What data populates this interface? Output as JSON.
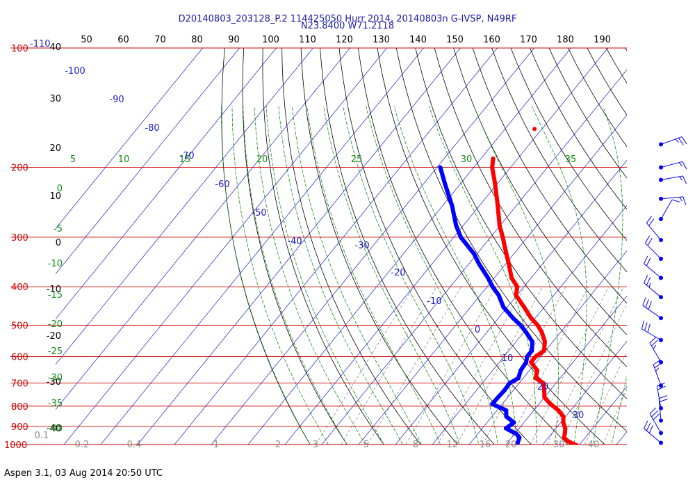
{
  "header": {
    "line1": "D20140803_203128_P.2 114425050 Hurr 2014, 20140803n G-IVSP, N49RF",
    "line2": "N23.8400 W71.2118"
  },
  "footer": "Aspen 3.1, 03 Aug 2014  20:50 UTC",
  "colors": {
    "temperature": "#ff0000",
    "dewpoint": "#0000ff",
    "isobar": "#cc0000",
    "isotherm": "#1a1acc",
    "dry_adiabat": "#000000",
    "moist_adiabat": "#138a13",
    "mixing_ratio": "#8a8a8a",
    "wind_barb": "#0000ff",
    "pressure_label": "#cc0000",
    "theta_label": "#000000",
    "mixing_label": "#8a8a8a",
    "moist_label": "#138a13"
  },
  "chart_data": {
    "type": "skew-t",
    "title": "D20140803_203128_P.2 114425050 Hurr 2014, 20140803n G-IVSP, N49RF",
    "subtitle": "N23.8400 W71.2118",
    "y_scale": "log-pressure",
    "ylim": [
      1000,
      100
    ],
    "pressure_levels": [
      100,
      200,
      300,
      400,
      500,
      600,
      700,
      800,
      900,
      1000
    ],
    "pressure_tick_labels": [
      "100",
      "200",
      "300",
      "400",
      "500",
      "600",
      "700",
      "800",
      "900",
      "1000"
    ],
    "top_temperature_label": "-110",
    "isotherm_labels": [
      "-100",
      "-90",
      "-80",
      "-70",
      "-60",
      "-50",
      "-40",
      "-30",
      "-20",
      "-10",
      "0",
      "10",
      "20",
      "30"
    ],
    "isotherm_label_values": [
      -100,
      -90,
      -80,
      -70,
      -60,
      -50,
      -40,
      -30,
      -20,
      -10,
      0,
      10,
      20,
      30
    ],
    "theta_scale_labels": [
      "50",
      "60",
      "70",
      "80",
      "90",
      "100",
      "110",
      "120",
      "130",
      "140",
      "150",
      "160",
      "170",
      "180",
      "190"
    ],
    "altitude_labels": [
      "40",
      "30",
      "20",
      "10",
      "0",
      "-10",
      "-20",
      "-30",
      "-40"
    ],
    "moist_adiabat_top_labels": [
      "5",
      "10",
      "15",
      "20",
      "25",
      "30",
      "35"
    ],
    "moist_adiabat_left_labels": [
      "0",
      "-5",
      "-10",
      "-15",
      "-20",
      "-25",
      "-30",
      "-35",
      "-40"
    ],
    "mixing_ratio_labels": [
      "0.1",
      "0.2",
      "0.4",
      "1",
      "2",
      "3",
      "5",
      "8",
      "12",
      "16",
      "20",
      "30",
      "40"
    ],
    "temperature_profile": [
      {
        "p": 190,
        "t": -56.7
      },
      {
        "p": 200,
        "t": -55.0
      },
      {
        "p": 220,
        "t": -50.6
      },
      {
        "p": 250,
        "t": -45.0
      },
      {
        "p": 280,
        "t": -40.2
      },
      {
        "p": 300,
        "t": -36.7
      },
      {
        "p": 330,
        "t": -32.1
      },
      {
        "p": 350,
        "t": -29.2
      },
      {
        "p": 380,
        "t": -25.3
      },
      {
        "p": 400,
        "t": -21.8
      },
      {
        "p": 420,
        "t": -20.3
      },
      {
        "p": 450,
        "t": -15.5
      },
      {
        "p": 480,
        "t": -11.1
      },
      {
        "p": 500,
        "t": -7.8
      },
      {
        "p": 520,
        "t": -5.2
      },
      {
        "p": 550,
        "t": -2.2
      },
      {
        "p": 580,
        "t": -0.4
      },
      {
        "p": 600,
        "t": -1.4
      },
      {
        "p": 620,
        "t": -1.4
      },
      {
        "p": 650,
        "t": 2.1
      },
      {
        "p": 680,
        "t": 3.4
      },
      {
        "p": 700,
        "t": 6.6
      },
      {
        "p": 730,
        "t": 8.4
      },
      {
        "p": 760,
        "t": 10.0
      },
      {
        "p": 790,
        "t": 13.1
      },
      {
        "p": 820,
        "t": 16.7
      },
      {
        "p": 850,
        "t": 19.4
      },
      {
        "p": 880,
        "t": 20.7
      },
      {
        "p": 910,
        "t": 22.5
      },
      {
        "p": 940,
        "t": 23.6
      },
      {
        "p": 960,
        "t": 24.2
      },
      {
        "p": 980,
        "t": 26.0
      },
      {
        "p": 1000,
        "t": 28.7
      },
      {
        "p": 1012,
        "t": 30.6
      }
    ],
    "dewpoint_profile": [
      {
        "p": 200,
        "td": -69.1
      },
      {
        "p": 220,
        "td": -64.2
      },
      {
        "p": 250,
        "td": -57.4
      },
      {
        "p": 280,
        "td": -52.0
      },
      {
        "p": 300,
        "td": -48.1
      },
      {
        "p": 330,
        "td": -40.9
      },
      {
        "p": 350,
        "td": -37.3
      },
      {
        "p": 380,
        "td": -31.7
      },
      {
        "p": 400,
        "td": -28.5
      },
      {
        "p": 420,
        "td": -25.0
      },
      {
        "p": 450,
        "td": -21.1
      },
      {
        "p": 480,
        "td": -16.0
      },
      {
        "p": 500,
        "td": -12.4
      },
      {
        "p": 520,
        "td": -9.5
      },
      {
        "p": 550,
        "td": -5.6
      },
      {
        "p": 580,
        "td": -3.7
      },
      {
        "p": 600,
        "td": -3.7
      },
      {
        "p": 620,
        "td": -2.7
      },
      {
        "p": 650,
        "td": -2.4
      },
      {
        "p": 680,
        "td": -1.3
      },
      {
        "p": 700,
        "td": -2.6
      },
      {
        "p": 730,
        "td": -2.4
      },
      {
        "p": 760,
        "td": -2.6
      },
      {
        "p": 790,
        "td": -2.7
      },
      {
        "p": 820,
        "td": 2.5
      },
      {
        "p": 850,
        "td": 3.9
      },
      {
        "p": 880,
        "td": 7.3
      },
      {
        "p": 910,
        "td": 6.4
      },
      {
        "p": 940,
        "td": 10.5
      },
      {
        "p": 960,
        "td": 12.1
      },
      {
        "p": 990,
        "td": 12.8
      },
      {
        "p": 1010,
        "td": 13.4
      }
    ],
    "isolated_temperature_point": {
      "p": 160,
      "t": -52.0
    },
    "wind_barbs": [
      {
        "p": 175,
        "speed_kt": 25,
        "direction_deg": 250
      },
      {
        "p": 200,
        "speed_kt": 15,
        "direction_deg": 255
      },
      {
        "p": 215,
        "speed_kt": 15,
        "direction_deg": 260
      },
      {
        "p": 240,
        "speed_kt": 15,
        "direction_deg": 265
      },
      {
        "p": 270,
        "speed_kt": 10,
        "direction_deg": 210
      },
      {
        "p": 305,
        "speed_kt": 20,
        "direction_deg": 140
      },
      {
        "p": 340,
        "speed_kt": 20,
        "direction_deg": 135
      },
      {
        "p": 380,
        "speed_kt": 20,
        "direction_deg": 130
      },
      {
        "p": 425,
        "speed_kt": 25,
        "direction_deg": 130
      },
      {
        "p": 480,
        "speed_kt": 30,
        "direction_deg": 125
      },
      {
        "p": 545,
        "speed_kt": 30,
        "direction_deg": 120
      },
      {
        "p": 620,
        "speed_kt": 25,
        "direction_deg": 150
      },
      {
        "p": 710,
        "speed_kt": 25,
        "direction_deg": 160
      },
      {
        "p": 810,
        "speed_kt": 20,
        "direction_deg": 170
      },
      {
        "p": 870,
        "speed_kt": 20,
        "direction_deg": 175
      },
      {
        "p": 935,
        "speed_kt": 30,
        "direction_deg": 150
      },
      {
        "p": 990,
        "speed_kt": 30,
        "direction_deg": 130
      }
    ],
    "grid": true,
    "legend": "none"
  }
}
